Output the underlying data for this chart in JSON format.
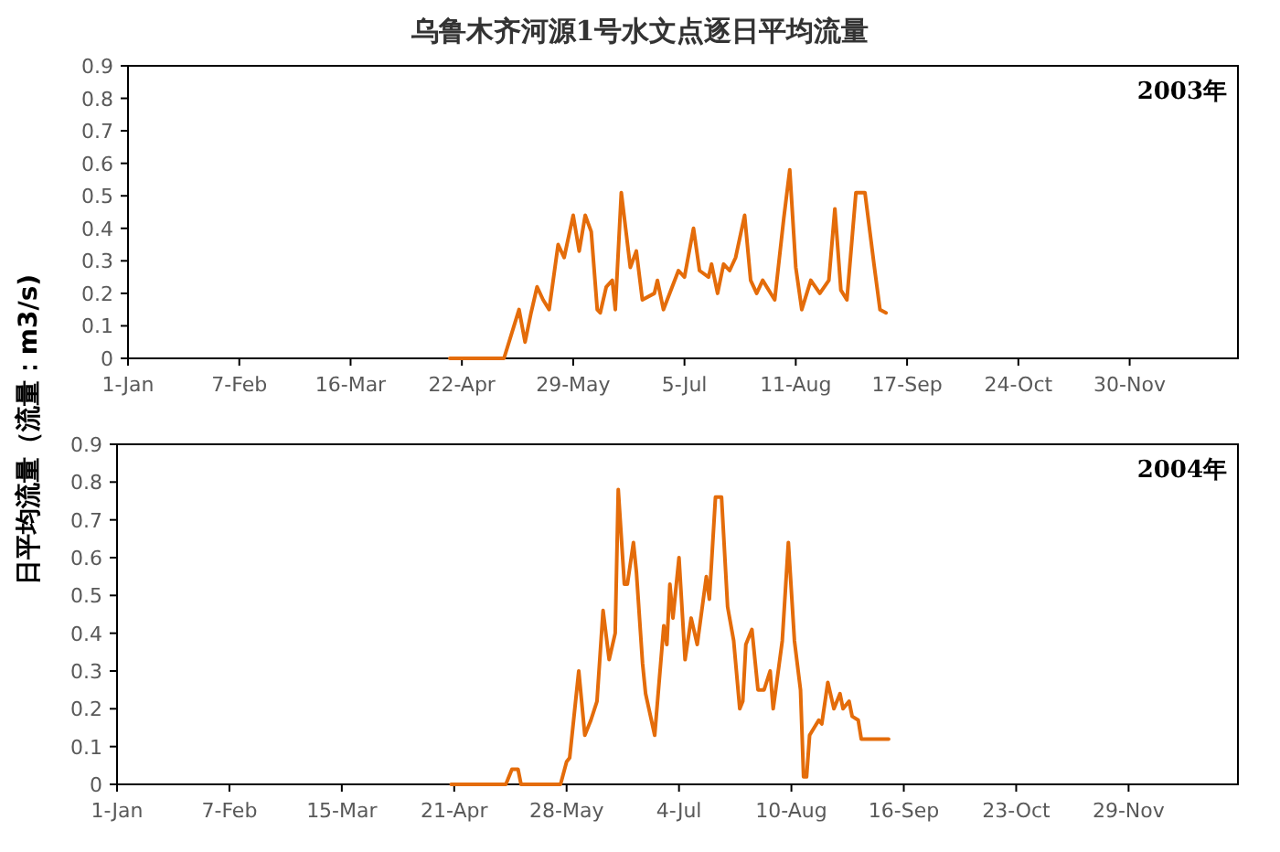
{
  "chart_data": [
    {
      "type": "line",
      "title": "乌鲁木齐河源1号水文点逐日平均流量",
      "ylabel": "日平均流量（流量：m3/s)",
      "annotations": [
        "2003年"
      ],
      "color": "#e46c0a",
      "grid": false,
      "xlim": [
        "2003-01-01",
        "2004-01-05"
      ],
      "ylim": [
        0,
        0.9
      ],
      "yticks": [
        0,
        0.1,
        0.2,
        0.3,
        0.4,
        0.5,
        0.6,
        0.7,
        0.8,
        0.9
      ],
      "xticks": [
        {
          "value": "2003-01-01",
          "label": "1-Jan"
        },
        {
          "value": "2003-02-07",
          "label": "7-Feb"
        },
        {
          "value": "2003-03-16",
          "label": "16-Mar"
        },
        {
          "value": "2003-04-22",
          "label": "22-Apr"
        },
        {
          "value": "2003-05-29",
          "label": "29-May"
        },
        {
          "value": "2003-07-05",
          "label": "5-Jul"
        },
        {
          "value": "2003-08-11",
          "label": "11-Aug"
        },
        {
          "value": "2003-09-17",
          "label": "17-Sep"
        },
        {
          "value": "2003-10-24",
          "label": "24-Oct"
        },
        {
          "value": "2003-11-30",
          "label": "30-Nov"
        }
      ],
      "x": [
        "2003-04-18",
        "2003-05-06",
        "2003-05-11",
        "2003-05-13",
        "2003-05-15",
        "2003-05-17",
        "2003-05-19",
        "2003-05-21",
        "2003-05-24",
        "2003-05-26",
        "2003-05-29",
        "2003-05-31",
        "2003-06-02",
        "2003-06-04",
        "2003-06-06",
        "2003-06-07",
        "2003-06-09",
        "2003-06-11",
        "2003-06-12",
        "2003-06-14",
        "2003-06-17",
        "2003-06-19",
        "2003-06-21",
        "2003-06-25",
        "2003-06-26",
        "2003-06-28",
        "2003-07-03",
        "2003-07-05",
        "2003-07-08",
        "2003-07-10",
        "2003-07-13",
        "2003-07-14",
        "2003-07-16",
        "2003-07-18",
        "2003-07-20",
        "2003-07-22",
        "2003-07-25",
        "2003-07-27",
        "2003-07-29",
        "2003-07-31",
        "2003-08-04",
        "2003-08-07",
        "2003-08-09",
        "2003-08-11",
        "2003-08-13",
        "2003-08-16",
        "2003-08-19",
        "2003-08-22",
        "2003-08-24",
        "2003-08-26",
        "2003-08-28",
        "2003-08-31",
        "2003-09-03",
        "2003-09-06",
        "2003-09-08",
        "2003-09-10"
      ],
      "values": [
        0,
        0,
        0.15,
        0.05,
        0.14,
        0.22,
        0.18,
        0.15,
        0.35,
        0.31,
        0.44,
        0.33,
        0.44,
        0.39,
        0.15,
        0.14,
        0.22,
        0.24,
        0.15,
        0.51,
        0.28,
        0.33,
        0.18,
        0.2,
        0.24,
        0.15,
        0.27,
        0.25,
        0.4,
        0.27,
        0.25,
        0.29,
        0.2,
        0.29,
        0.27,
        0.31,
        0.44,
        0.24,
        0.2,
        0.24,
        0.18,
        0.43,
        0.58,
        0.28,
        0.15,
        0.24,
        0.2,
        0.24,
        0.46,
        0.21,
        0.18,
        0.51,
        0.51,
        0.29,
        0.15,
        0.14
      ]
    },
    {
      "type": "line",
      "annotations": [
        "2004年"
      ],
      "color": "#e46c0a",
      "grid": false,
      "xlim": [
        "2004-01-01",
        "2005-01-04"
      ],
      "ylim": [
        0,
        0.9
      ],
      "yticks": [
        0,
        0.1,
        0.2,
        0.3,
        0.4,
        0.5,
        0.6,
        0.7,
        0.8,
        0.9
      ],
      "xticks": [
        {
          "value": "2004-01-01",
          "label": "1-Jan"
        },
        {
          "value": "2004-02-07",
          "label": "7-Feb"
        },
        {
          "value": "2004-03-15",
          "label": "15-Mar"
        },
        {
          "value": "2004-04-21",
          "label": "21-Apr"
        },
        {
          "value": "2004-05-28",
          "label": "28-May"
        },
        {
          "value": "2004-07-04",
          "label": "4-Jul"
        },
        {
          "value": "2004-08-10",
          "label": "10-Aug"
        },
        {
          "value": "2004-09-16",
          "label": "16-Sep"
        },
        {
          "value": "2004-10-23",
          "label": "23-Oct"
        },
        {
          "value": "2004-11-29",
          "label": "29-Nov"
        }
      ],
      "x": [
        "2004-04-20",
        "2004-05-08",
        "2004-05-10",
        "2004-05-12",
        "2004-05-13",
        "2004-05-26",
        "2004-05-28",
        "2004-05-29",
        "2004-06-01",
        "2004-06-03",
        "2004-06-05",
        "2004-06-07",
        "2004-06-09",
        "2004-06-11",
        "2004-06-13",
        "2004-06-14",
        "2004-06-16",
        "2004-06-17",
        "2004-06-19",
        "2004-06-20",
        "2004-06-22",
        "2004-06-23",
        "2004-06-26",
        "2004-06-29",
        "2004-06-30",
        "2004-07-01",
        "2004-07-02",
        "2004-07-04",
        "2004-07-06",
        "2004-07-08",
        "2004-07-10",
        "2004-07-13",
        "2004-07-14",
        "2004-07-16",
        "2004-07-18",
        "2004-07-20",
        "2004-07-22",
        "2004-07-24",
        "2004-07-25",
        "2004-07-26",
        "2004-07-28",
        "2004-07-30",
        "2004-08-01",
        "2004-08-03",
        "2004-08-04",
        "2004-08-07",
        "2004-08-09",
        "2004-08-11",
        "2004-08-13",
        "2004-08-14",
        "2004-08-15",
        "2004-08-16",
        "2004-08-19",
        "2004-08-20",
        "2004-08-22",
        "2004-08-24",
        "2004-08-26",
        "2004-08-27",
        "2004-08-29",
        "2004-08-30",
        "2004-09-01",
        "2004-09-02",
        "2004-09-11"
      ],
      "values": [
        0,
        0,
        0.04,
        0.04,
        0,
        0,
        0.06,
        0.07,
        0.3,
        0.13,
        0.17,
        0.22,
        0.46,
        0.33,
        0.4,
        0.78,
        0.53,
        0.53,
        0.64,
        0.56,
        0.32,
        0.24,
        0.13,
        0.42,
        0.37,
        0.53,
        0.44,
        0.6,
        0.33,
        0.44,
        0.37,
        0.55,
        0.49,
        0.76,
        0.76,
        0.47,
        0.38,
        0.2,
        0.22,
        0.37,
        0.41,
        0.25,
        0.25,
        0.3,
        0.2,
        0.38,
        0.64,
        0.38,
        0.25,
        0.02,
        0.02,
        0.13,
        0.17,
        0.16,
        0.27,
        0.2,
        0.24,
        0.2,
        0.22,
        0.18,
        0.17,
        0.12,
        0.12
      ]
    }
  ]
}
